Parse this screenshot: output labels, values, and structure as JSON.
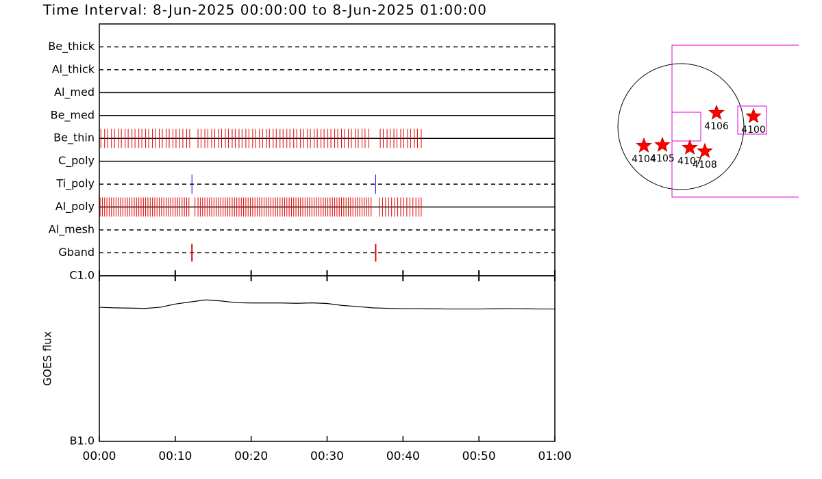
{
  "chart_data": [
    {
      "type": "timeline",
      "title": "Time Interval:  8-Jun-2025 00:00:00 to  8-Jun-2025 01:00:00",
      "xlim": [
        0,
        60
      ],
      "rows": [
        {
          "label": "Be_thick",
          "dashed": true,
          "color": "#e00000",
          "times": []
        },
        {
          "label": "Al_thick",
          "dashed": true,
          "color": "#e00000",
          "times": []
        },
        {
          "label": "Al_med",
          "dashed": false,
          "color": "#e00000",
          "times": []
        },
        {
          "label": "Be_med",
          "dashed": false,
          "color": "#e00000",
          "times": []
        },
        {
          "label": "Be_thin",
          "dashed": false,
          "color": "#e00000",
          "times": [
            0.2,
            0.7,
            1.1,
            1.6,
            2.0,
            2.5,
            2.9,
            3.4,
            3.8,
            4.3,
            4.7,
            5.2,
            5.6,
            6.1,
            6.5,
            7.0,
            7.4,
            7.9,
            8.3,
            8.8,
            9.2,
            9.7,
            10.1,
            10.6,
            11.0,
            11.5,
            11.9,
            13.0,
            13.4,
            13.9,
            14.3,
            14.8,
            15.2,
            15.7,
            16.1,
            16.6,
            17.0,
            17.5,
            17.9,
            18.4,
            18.8,
            19.3,
            19.7,
            20.2,
            20.6,
            21.1,
            21.5,
            22.0,
            22.4,
            22.9,
            23.3,
            23.8,
            24.2,
            24.7,
            25.1,
            25.6,
            26.0,
            26.5,
            26.9,
            27.4,
            27.8,
            28.3,
            28.7,
            29.2,
            29.6,
            30.1,
            30.5,
            31.0,
            31.4,
            31.9,
            32.3,
            32.8,
            33.2,
            33.7,
            34.1,
            34.6,
            35.0,
            35.5,
            37.0,
            37.4,
            37.9,
            38.3,
            38.8,
            39.2,
            39.7,
            40.1,
            40.6,
            41.0,
            41.5,
            41.9,
            42.4
          ]
        },
        {
          "label": "C_poly",
          "dashed": false,
          "color": "#e00000",
          "times": []
        },
        {
          "label": "Ti_poly",
          "dashed": true,
          "color": "#0000e0",
          "times": [
            12.2,
            36.4
          ]
        },
        {
          "label": "Al_poly",
          "dashed": false,
          "color": "#e00000",
          "times": [
            0.1,
            0.4,
            0.7,
            1.0,
            1.3,
            1.6,
            1.9,
            2.2,
            2.5,
            2.8,
            3.1,
            3.4,
            3.7,
            4.0,
            4.3,
            4.6,
            4.9,
            5.2,
            5.5,
            5.8,
            6.1,
            6.4,
            6.7,
            7.0,
            7.3,
            7.6,
            7.9,
            8.2,
            8.5,
            8.8,
            9.1,
            9.4,
            9.7,
            10.0,
            10.3,
            10.6,
            10.9,
            11.2,
            11.5,
            11.8,
            12.6,
            13.0,
            13.3,
            13.6,
            13.9,
            14.2,
            14.5,
            14.8,
            15.1,
            15.4,
            15.7,
            16.0,
            16.3,
            16.6,
            16.9,
            17.2,
            17.5,
            17.8,
            18.1,
            18.4,
            18.7,
            19.0,
            19.3,
            19.6,
            19.9,
            20.2,
            20.5,
            20.8,
            21.1,
            21.4,
            21.7,
            22.0,
            22.3,
            22.6,
            22.9,
            23.2,
            23.5,
            23.8,
            24.1,
            24.4,
            24.7,
            25.0,
            25.3,
            25.6,
            25.9,
            26.2,
            26.5,
            26.8,
            27.1,
            27.4,
            27.7,
            28.0,
            28.3,
            28.6,
            28.9,
            29.2,
            29.5,
            29.8,
            30.1,
            30.4,
            30.7,
            31.0,
            31.3,
            31.6,
            31.9,
            32.2,
            32.5,
            32.8,
            33.1,
            33.4,
            33.7,
            34.0,
            34.3,
            34.6,
            34.9,
            35.2,
            35.5,
            35.8,
            36.9,
            37.3,
            37.7,
            38.1,
            38.5,
            38.9,
            39.3,
            39.7,
            40.1,
            40.5,
            40.9,
            41.3,
            41.7,
            42.1,
            42.4
          ]
        },
        {
          "label": "Al_mesh",
          "dashed": true,
          "color": "#e00000",
          "times": []
        },
        {
          "label": "Gband",
          "dashed": true,
          "color": "#e00000",
          "times": [
            12.2,
            36.4
          ]
        }
      ]
    },
    {
      "type": "line",
      "y_label": "GOES flux",
      "log_y": true,
      "color": "#000000",
      "x": [
        0,
        2,
        4,
        6,
        8,
        10,
        12,
        14,
        16,
        18,
        20,
        22,
        24,
        26,
        28,
        30,
        32,
        34,
        36,
        38,
        40,
        42,
        44,
        46,
        48,
        50,
        52,
        54,
        56,
        58,
        60
      ],
      "values": [
        6.45e-07,
        6.4e-07,
        6.38e-07,
        6.35e-07,
        6.45e-07,
        6.75e-07,
        6.95e-07,
        7.15e-07,
        7.05e-07,
        6.88e-07,
        6.85e-07,
        6.85e-07,
        6.85e-07,
        6.82e-07,
        6.86e-07,
        6.8e-07,
        6.62e-07,
        6.52e-07,
        6.4e-07,
        6.36e-07,
        6.33e-07,
        6.33e-07,
        6.32e-07,
        6.3e-07,
        6.3e-07,
        6.3e-07,
        6.32e-07,
        6.33e-07,
        6.32e-07,
        6.3e-07,
        6.3e-07
      ],
      "xlim": [
        0,
        60
      ],
      "xticks": [
        {
          "value": 0,
          "label": "00:00"
        },
        {
          "value": 10,
          "label": "00:10"
        },
        {
          "value": 20,
          "label": "00:20"
        },
        {
          "value": 30,
          "label": "00:30"
        },
        {
          "value": 40,
          "label": "00:40"
        },
        {
          "value": 50,
          "label": "00:50"
        },
        {
          "value": 60,
          "label": "01:00"
        }
      ],
      "ylim": [
        1e-07,
        1e-06
      ],
      "yticks": [
        {
          "value": 1e-07,
          "label": "B1.0"
        },
        {
          "value": 1e-06,
          "label": "C1.0"
        }
      ]
    },
    {
      "type": "map",
      "regions": [
        {
          "label": "4100"
        },
        {
          "label": "4104"
        },
        {
          "label": "4105"
        },
        {
          "label": "4106"
        },
        {
          "label": "4107"
        },
        {
          "label": "4108"
        }
      ]
    }
  ]
}
